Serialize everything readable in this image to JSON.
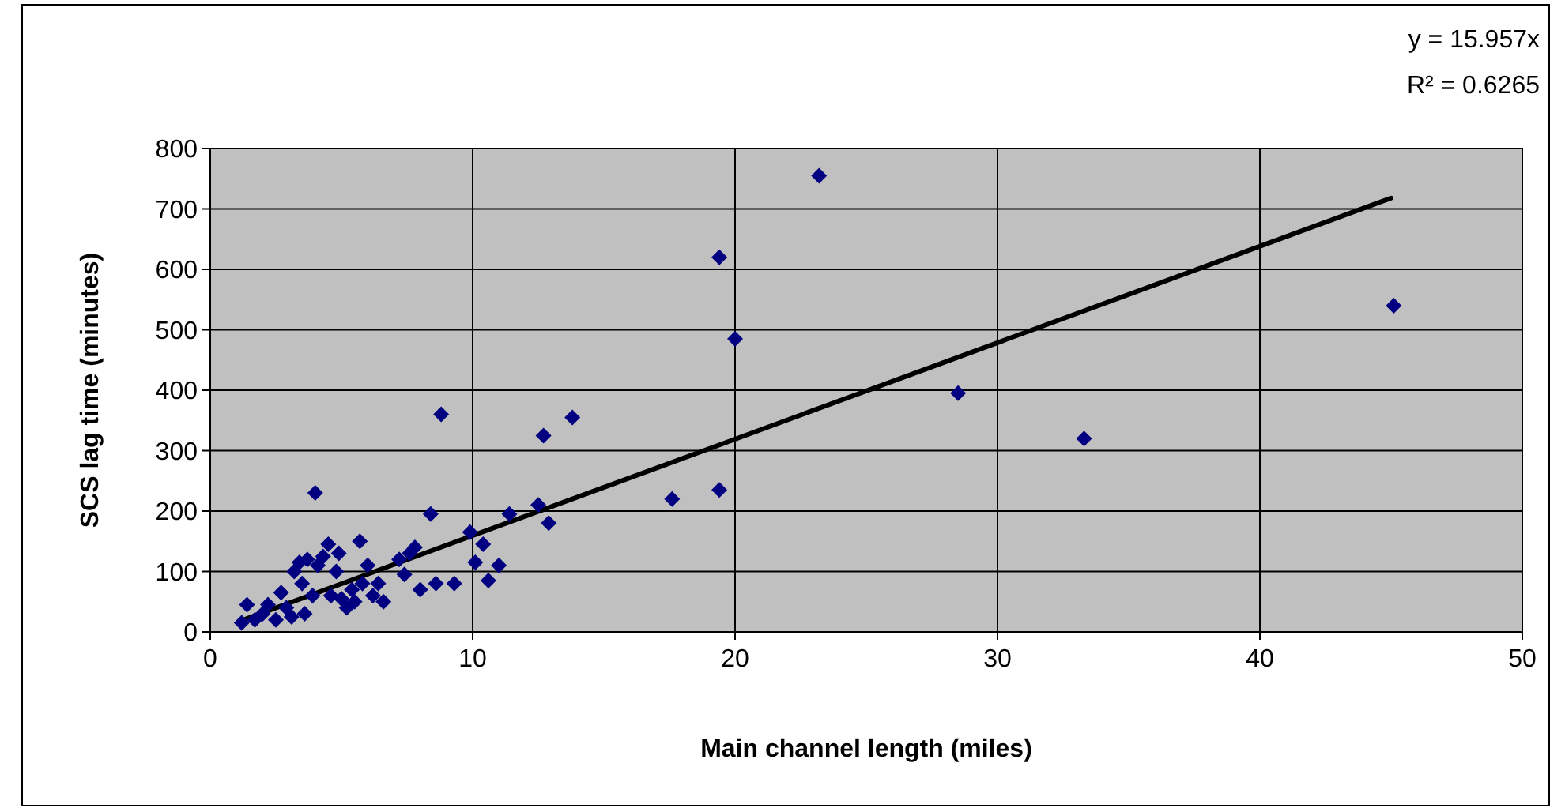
{
  "chart_data": {
    "type": "scatter",
    "xlabel": "Main channel length (miles)",
    "ylabel": "SCS lag time (minutes)",
    "xlim": [
      0,
      50
    ],
    "xticks": [
      0,
      10,
      20,
      30,
      40,
      50
    ],
    "ylim": [
      0,
      800
    ],
    "yticks": [
      0,
      100,
      200,
      300,
      400,
      500,
      600,
      700,
      800
    ],
    "grid": true,
    "marker": "diamond",
    "annotations": [
      "y = 15.957x",
      "R² = 0.6265"
    ],
    "series": [
      {
        "color": "#000080",
        "x": [
          1.2,
          1.4,
          1.7,
          2,
          2.2,
          2.5,
          2.7,
          2.9,
          3.1,
          3.2,
          3.4,
          3.5,
          3.6,
          3.7,
          3.9,
          4,
          4.1,
          4.3,
          4.5,
          4.6,
          4.8,
          4.9,
          5,
          5.2,
          5.4,
          5.5,
          5.7,
          5.8,
          6,
          6.2,
          6.4,
          6.6,
          7.2,
          7.4,
          7.6,
          7.8,
          8,
          8.4,
          8.6,
          8.8,
          9.3,
          9.9,
          10.1,
          10.4,
          10.6,
          11,
          11.4,
          12.5,
          12.7,
          12.9,
          13.8,
          17.6,
          19.4,
          19.4,
          20,
          23.2,
          28.5,
          33.3,
          45.1
        ],
        "values": [
          15,
          45,
          20,
          30,
          45,
          20,
          65,
          40,
          25,
          100,
          115,
          80,
          30,
          120,
          60,
          230,
          110,
          125,
          145,
          60,
          100,
          130,
          55,
          40,
          70,
          50,
          150,
          80,
          110,
          60,
          80,
          50,
          120,
          95,
          130,
          140,
          70,
          195,
          80,
          360,
          80,
          165,
          115,
          145,
          85,
          110,
          195,
          210,
          325,
          180,
          355,
          220,
          235,
          620,
          485,
          755,
          395,
          320,
          540
        ]
      },
      {
        "type": "line",
        "color": "#000000",
        "marker": "none",
        "line_style": "solid",
        "x": [
          1.2,
          45
        ],
        "values": [
          19,
          718
        ]
      }
    ]
  }
}
